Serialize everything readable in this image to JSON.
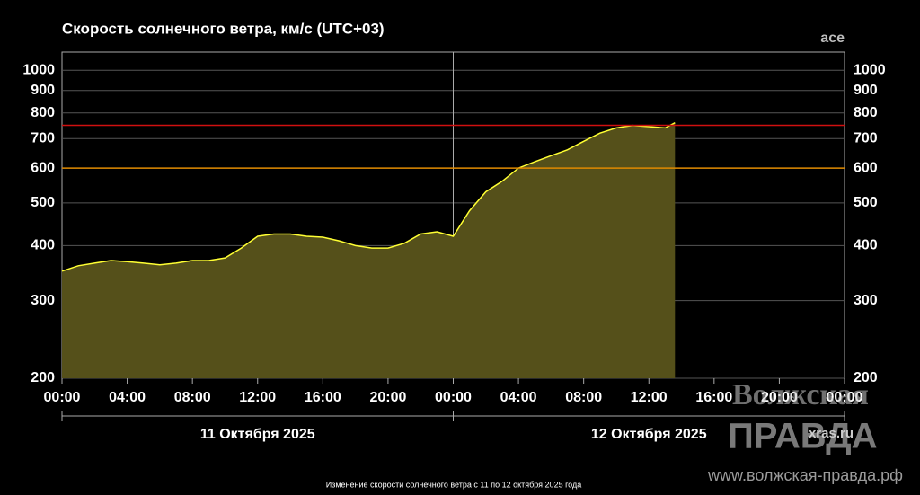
{
  "chart_data": {
    "type": "area",
    "title": "Скорость солнечного ветра, км/с (UTC+03)",
    "source": "ace",
    "caption": "Изменение скорости солнечного ветра с 11 по 12 октября 2025 года",
    "watermark": {
      "top": "Волжская",
      "bottom": "ПРАВДА",
      "url": "www.волжская-правда.рф",
      "site": "xras.ru"
    },
    "date_labels": [
      "11 Октября 2025",
      "12 Октября 2025"
    ],
    "x": [
      0,
      1,
      2,
      3,
      4,
      5,
      6,
      7,
      8,
      9,
      10,
      11,
      12,
      13,
      14,
      15,
      16,
      17,
      18,
      19,
      20,
      21,
      22,
      23,
      24,
      25,
      26,
      27,
      28,
      29,
      30,
      31,
      32,
      33,
      34,
      35,
      36,
      37,
      37.6
    ],
    "series": [
      {
        "name": "ace",
        "color": "#ffff33",
        "fill": "#55501a",
        "values": [
          350,
          360,
          365,
          370,
          368,
          365,
          362,
          365,
          370,
          370,
          375,
          395,
          420,
          425,
          425,
          420,
          418,
          410,
          400,
          395,
          395,
          405,
          425,
          430,
          420,
          480,
          530,
          560,
          600,
          620,
          640,
          660,
          690,
          720,
          740,
          750,
          745,
          740,
          760
        ]
      }
    ],
    "xlim": [
      0,
      48
    ],
    "xticks": [
      {
        "value": 0,
        "label": "00:00"
      },
      {
        "value": 4,
        "label": "04:00"
      },
      {
        "value": 8,
        "label": "08:00"
      },
      {
        "value": 12,
        "label": "12:00"
      },
      {
        "value": 16,
        "label": "16:00"
      },
      {
        "value": 20,
        "label": "20:00"
      },
      {
        "value": 24,
        "label": "00:00"
      },
      {
        "value": 28,
        "label": "04:00"
      },
      {
        "value": 32,
        "label": "08:00"
      },
      {
        "value": 36,
        "label": "12:00"
      },
      {
        "value": 40,
        "label": "16:00"
      },
      {
        "value": 44,
        "label": "20:00"
      },
      {
        "value": 48,
        "label": "00:00"
      }
    ],
    "ylim": [
      200,
      1100
    ],
    "yticks": [
      200,
      300,
      400,
      500,
      600,
      700,
      800,
      900,
      1000
    ],
    "log_y": true,
    "grid": true,
    "reference_lines": [
      {
        "value": 600,
        "color": "#e08a00"
      },
      {
        "value": 750,
        "color": "#d01010"
      }
    ]
  }
}
